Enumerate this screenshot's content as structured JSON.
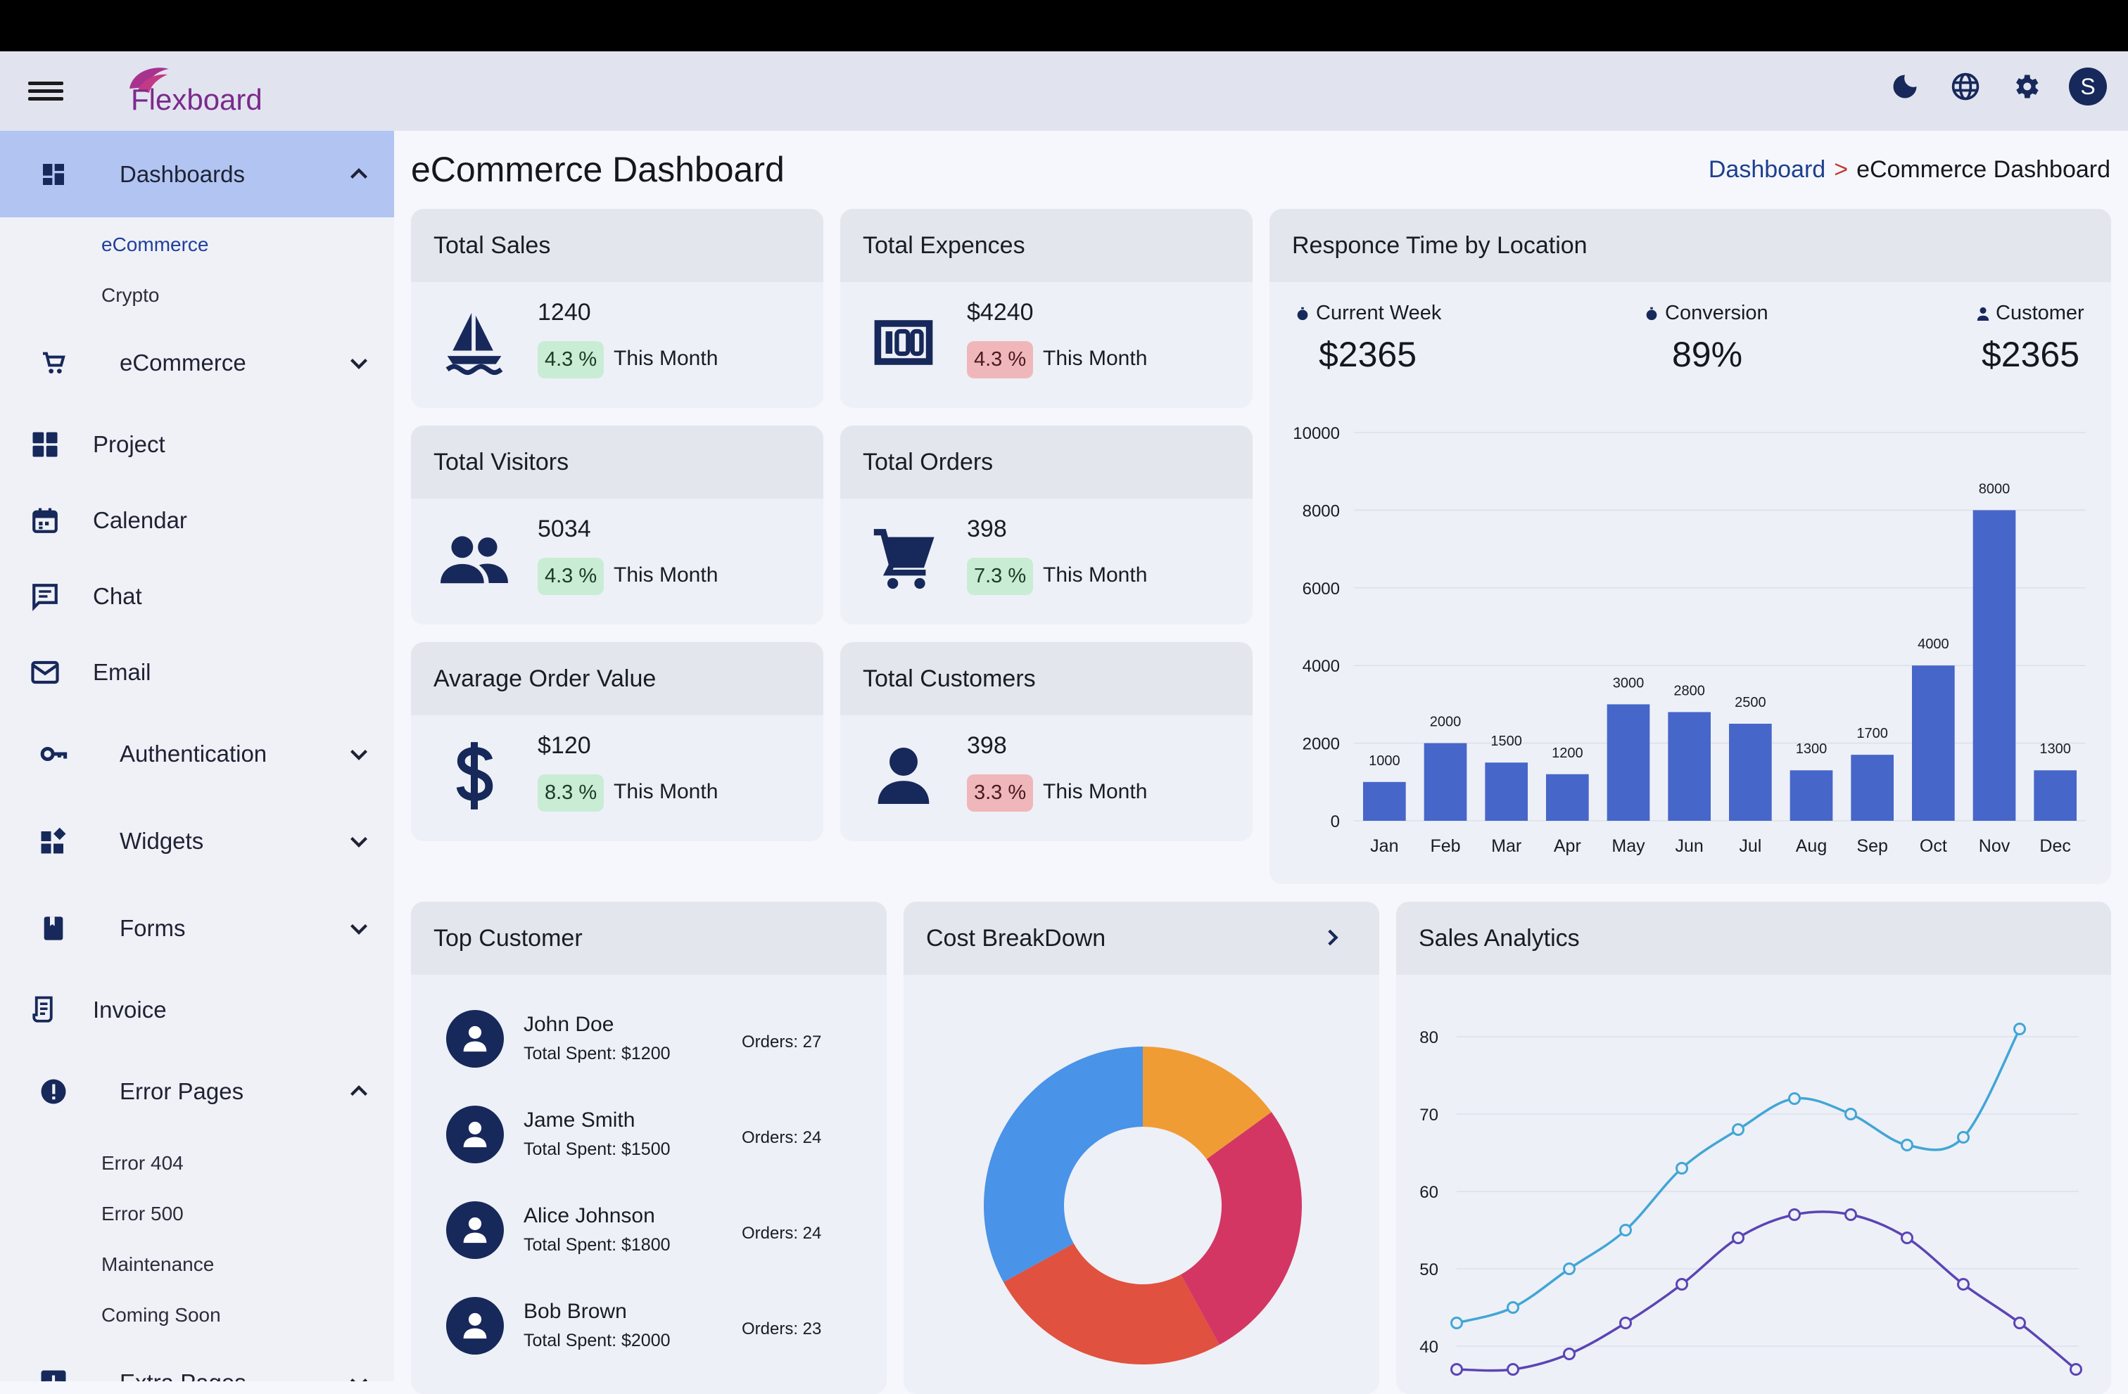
{
  "app": {
    "logo_text": "Flexboard"
  },
  "topbar": {
    "avatar_letter": "S"
  },
  "sidebar": {
    "dashboards": "Dashboards",
    "sub_ecommerce": "eCommerce",
    "sub_crypto": "Crypto",
    "ecommerce": "eCommerce",
    "project": "Project",
    "calendar": "Calendar",
    "chat": "Chat",
    "email": "Email",
    "authentication": "Authentication",
    "widgets": "Widgets",
    "forms": "Forms",
    "invoice": "Invoice",
    "error_pages": "Error Pages",
    "sub_error404": "Error 404",
    "sub_error500": "Error 500",
    "sub_maintenance": "Maintenance",
    "sub_coming_soon": "Coming Soon",
    "extra_pages": "Extra Pages"
  },
  "page": {
    "title": "eCommerce Dashboard",
    "breadcrumb_link": "Dashboard",
    "breadcrumb_sep": ">",
    "breadcrumb_current": "eCommerce Dashboard"
  },
  "stats": [
    {
      "title": "Total Sales",
      "value": "1240",
      "change": "4.3 %",
      "period": "This Month",
      "badge": "green",
      "icon": "sailboat-icon"
    },
    {
      "title": "Total Expences",
      "value": "$4240",
      "change": "4.3 %",
      "period": "This Month",
      "badge": "red",
      "icon": "money-icon"
    },
    {
      "title": "Total Visitors",
      "value": "5034",
      "change": "4.3 %",
      "period": "This Month",
      "badge": "green",
      "icon": "people-icon"
    },
    {
      "title": "Total Orders",
      "value": "398",
      "change": "7.3 %",
      "period": "This Month",
      "badge": "green",
      "icon": "cart-icon"
    },
    {
      "title": "Avarage Order Value",
      "value": "$120",
      "change": "8.3 %",
      "period": "This Month",
      "badge": "green",
      "icon": "dollar-icon"
    },
    {
      "title": "Total Customers",
      "value": "398",
      "change": "3.3 %",
      "period": "This Month",
      "badge": "red",
      "icon": "person-icon"
    }
  ],
  "response": {
    "title": "Responce Time by Location",
    "metrics": [
      {
        "label": "Current Week",
        "value": "$2365"
      },
      {
        "label": "Conversion",
        "value": "89%"
      },
      {
        "label": "Customer",
        "value": "$2365"
      }
    ]
  },
  "top_customer": {
    "title": "Top Customer",
    "rows": [
      {
        "name": "John Doe",
        "spent": "Total Spent: $1200",
        "orders": "Orders: 27"
      },
      {
        "name": "Jame Smith",
        "spent": "Total Spent: $1500",
        "orders": "Orders: 24"
      },
      {
        "name": "Alice Johnson",
        "spent": "Total Spent: $1800",
        "orders": "Orders: 24"
      },
      {
        "name": "Bob Brown",
        "spent": "Total Spent: $2000",
        "orders": "Orders: 23"
      }
    ]
  },
  "cost": {
    "title": "Cost BreakDown"
  },
  "sales": {
    "title": "Sales Analytics"
  },
  "chart_data": [
    {
      "type": "bar",
      "categories": [
        "Jan",
        "Feb",
        "Mar",
        "Apr",
        "May",
        "Jun",
        "Jul",
        "Aug",
        "Sep",
        "Oct",
        "Nov",
        "Dec"
      ],
      "values": [
        1000,
        2000,
        1500,
        1200,
        3000,
        2800,
        2500,
        1300,
        1700,
        4000,
        8000,
        1300
      ],
      "yticks": [
        0,
        2000,
        4000,
        6000,
        8000,
        10000
      ],
      "ylim": [
        0,
        10000
      ],
      "color": "#4666c9",
      "grid": true
    },
    {
      "type": "pie",
      "donut": true,
      "values": [
        15,
        27,
        25,
        33
      ],
      "colors": [
        "#f09c34",
        "#d33663",
        "#e0513f",
        "#4993e8"
      ]
    },
    {
      "type": "line",
      "yticks": [
        40,
        50,
        60,
        70,
        80
      ],
      "series": [
        {
          "values": [
            43,
            45,
            50,
            55,
            63,
            68,
            72,
            70,
            66,
            67,
            81
          ],
          "color": "#41a6d6"
        },
        {
          "values": [
            37,
            37,
            39,
            43,
            48,
            54,
            57,
            57,
            54,
            48,
            43,
            37
          ],
          "color": "#5b44b5"
        }
      ]
    }
  ],
  "colors": {
    "accent": "#17285a",
    "sidebar_active": "#b1c4f2",
    "bar": "#4666c9"
  }
}
